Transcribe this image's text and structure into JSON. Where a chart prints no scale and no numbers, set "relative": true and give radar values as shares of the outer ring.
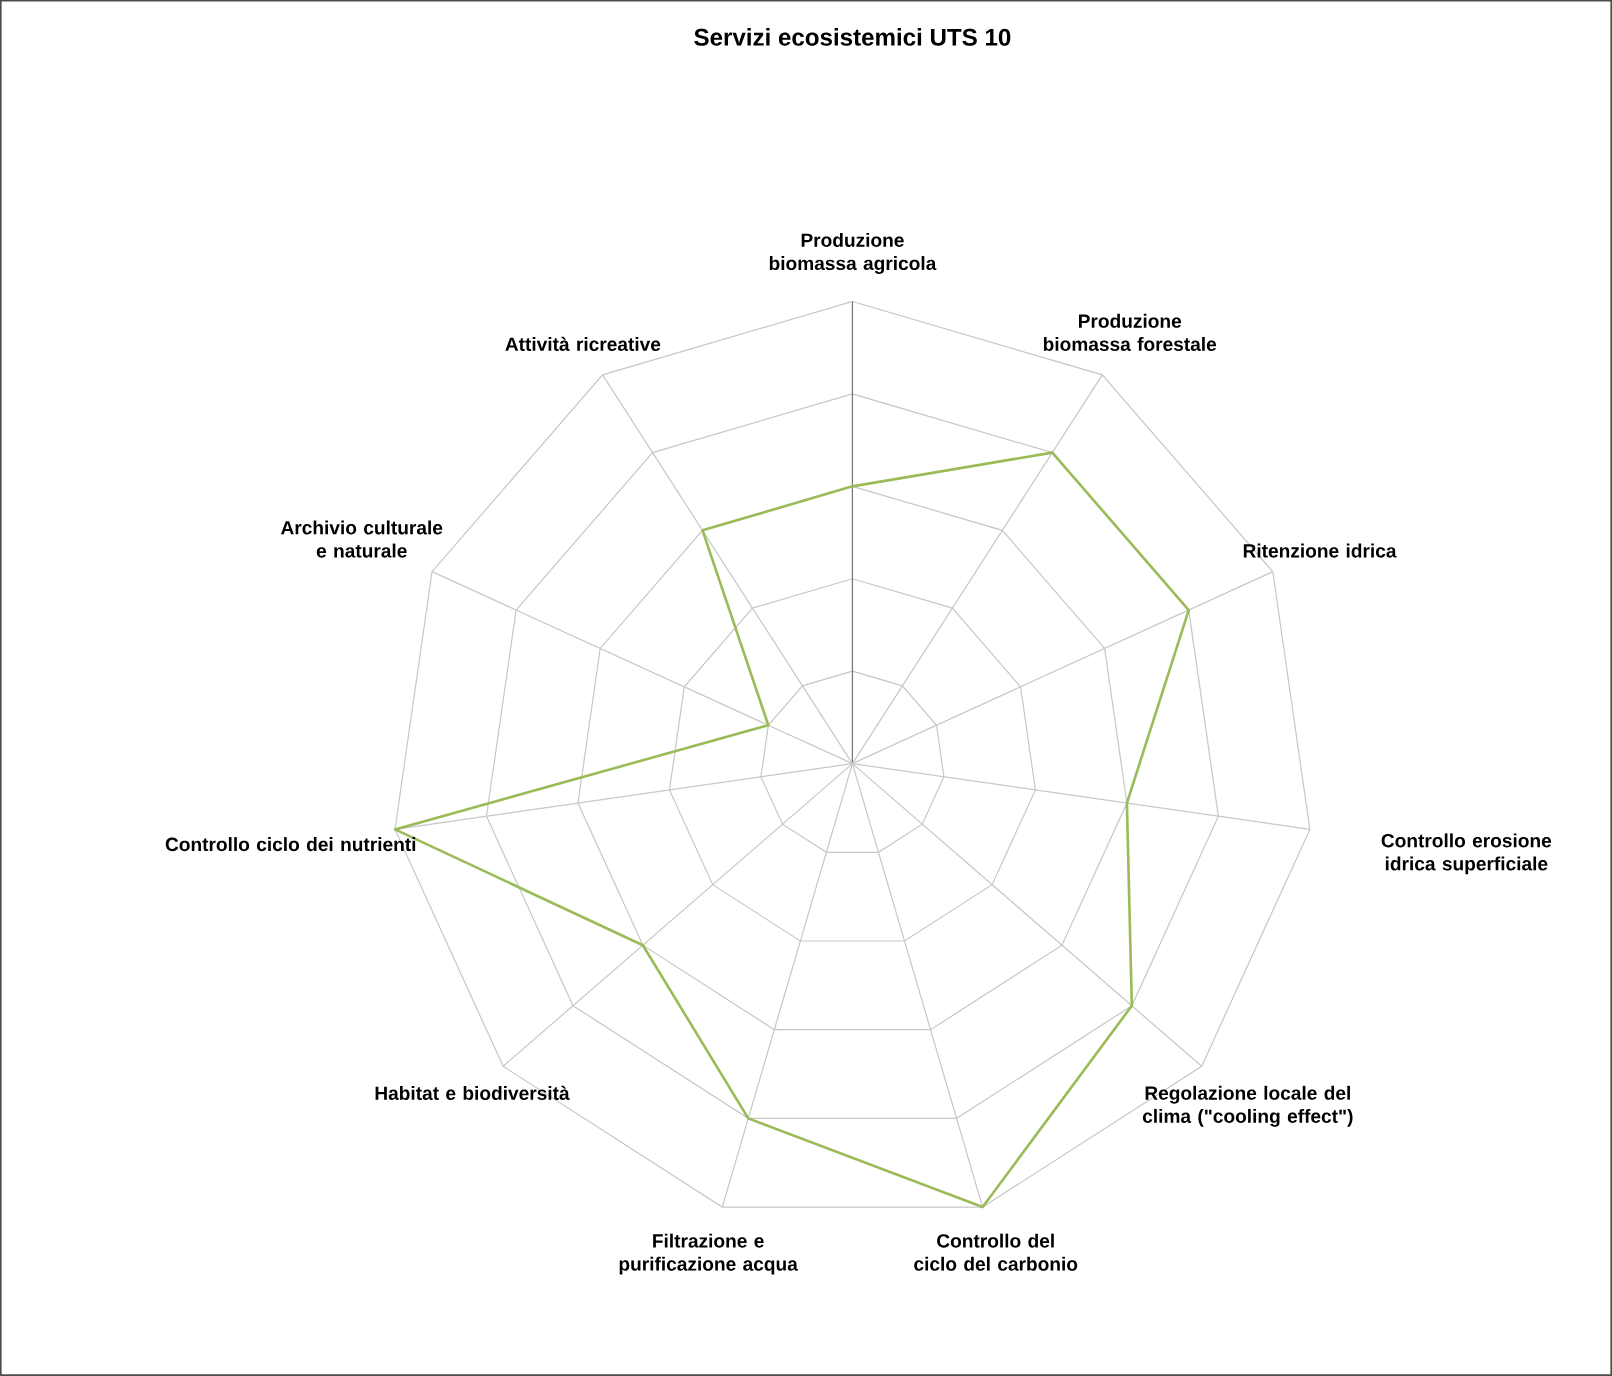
{
  "chart_data": {
    "type": "radar",
    "title": "Servizi ecosistemici UTS 10",
    "relative": true,
    "grid": true,
    "categories": [
      "Produzione biomassa agricola",
      "Produzione biomassa forestale",
      "Ritenzione idrica",
      "Controllo erosione idrica superficiale",
      "Regolazione locale del clima (\"cooling effect\")",
      "Controllo del ciclo del carbonio",
      "Filtrazione e purificazione acqua",
      "Habitat e biodiversità",
      "Controllo ciclo dei nutrienti",
      "Archivio culturale e naturale",
      "Attività ricreative"
    ],
    "series": [
      {
        "color": "#9bbb59",
        "values": [
          0.6,
          0.8,
          0.8,
          0.6,
          0.8,
          1,
          0.8,
          0.6,
          1,
          0.2,
          0.6
        ]
      }
    ]
  }
}
